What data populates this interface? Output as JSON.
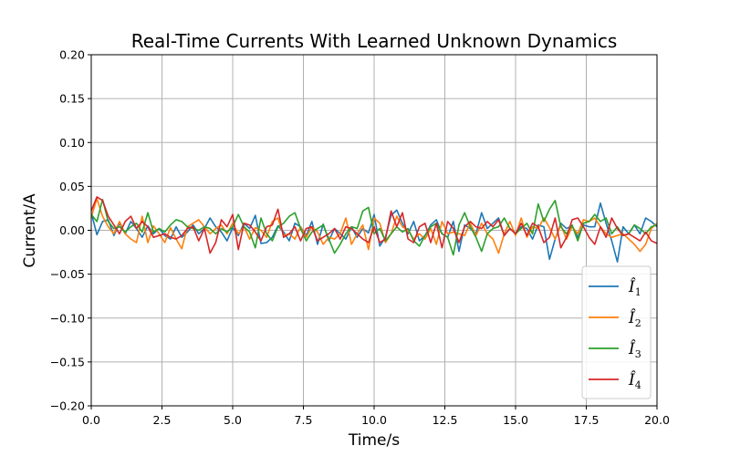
{
  "chart_data": {
    "type": "line",
    "title": "Real-Time Currents With Learned Unknown Dynamics",
    "xlabel": "Time/s",
    "ylabel": "Current/A",
    "xlim": [
      0,
      20
    ],
    "ylim": [
      -0.2,
      0.2
    ],
    "xticks": [
      "0.0",
      "2.5",
      "5.0",
      "7.5",
      "10.0",
      "12.5",
      "15.0",
      "17.5",
      "20.0"
    ],
    "yticks": [
      "0.20",
      "0.15",
      "0.10",
      "0.05",
      "0.00",
      "−0.05",
      "−0.10",
      "−0.15",
      "−0.20"
    ],
    "grid": true,
    "legend_position": "lower-right",
    "series": [
      {
        "name": "Î",
        "subscript": "1",
        "color": "#1f77b4",
        "x": [
          0.0,
          0.2,
          0.4,
          0.6,
          0.8,
          1.0,
          1.2,
          1.4,
          1.6,
          1.8,
          2.0,
          2.2,
          2.4,
          2.6,
          2.8,
          3.0,
          3.2,
          3.4,
          3.6,
          3.8,
          4.0,
          4.2,
          4.4,
          4.6,
          4.8,
          5.0,
          5.2,
          5.4,
          5.6,
          5.8,
          6.0,
          6.2,
          6.4,
          6.6,
          6.8,
          7.0,
          7.2,
          7.4,
          7.6,
          7.8,
          8.0,
          8.2,
          8.4,
          8.6,
          8.8,
          9.0,
          9.2,
          9.4,
          9.6,
          9.8,
          10.0,
          10.2,
          10.4,
          10.6,
          10.8,
          11.0,
          11.2,
          11.4,
          11.6,
          11.8,
          12.0,
          12.2,
          12.4,
          12.6,
          12.8,
          13.0,
          13.2,
          13.4,
          13.6,
          13.8,
          14.0,
          14.2,
          14.4,
          14.6,
          14.8,
          15.0,
          15.2,
          15.4,
          15.6,
          15.8,
          16.0,
          16.2,
          16.4,
          16.6,
          16.8,
          17.0,
          17.2,
          17.4,
          17.6,
          17.8,
          18.0,
          18.2,
          18.4,
          18.6,
          18.8,
          19.0,
          19.2,
          19.4,
          19.6,
          19.8,
          20.0
        ],
        "y": [
          0.02,
          -0.005,
          0.01,
          0.012,
          -0.006,
          0.008,
          -0.004,
          0.01,
          0.002,
          -0.008,
          0.005,
          -0.004,
          0.002,
          -0.006,
          -0.01,
          0.004,
          -0.008,
          -0.002,
          0.006,
          -0.004,
          0.002,
          0.014,
          0.004,
          -0.002,
          -0.012,
          0.003,
          -0.006,
          0.008,
          0.002,
          0.017,
          -0.015,
          -0.014,
          -0.008,
          0.005,
          -0.002,
          -0.012,
          0.008,
          0.004,
          -0.006,
          0.01,
          -0.016,
          0.007,
          -0.012,
          0.002,
          -0.004,
          -0.01,
          0.004,
          -0.008,
          0.002,
          -0.003,
          0.018,
          -0.018,
          -0.008,
          0.017,
          0.023,
          0.008,
          -0.004,
          0.01,
          -0.012,
          -0.006,
          0.006,
          0.012,
          -0.004,
          -0.008,
          0.01,
          -0.024,
          0.006,
          0.002,
          -0.004,
          0.02,
          0.002,
          0.008,
          0.014,
          -0.006,
          0.002,
          -0.004,
          0.004,
          0.002,
          -0.01,
          0.006,
          0.004,
          -0.033,
          -0.01,
          0.008,
          0.002,
          0.005,
          -0.008,
          0.006,
          0.004,
          0.004,
          0.031,
          0.008,
          -0.012,
          -0.036,
          0.004,
          -0.004,
          0.006,
          -0.004,
          0.014,
          0.01,
          0.004
        ]
      },
      {
        "name": "Î",
        "subscript": "2",
        "color": "#ff7f0e",
        "x": [
          0.0,
          0.2,
          0.4,
          0.6,
          0.8,
          1.0,
          1.2,
          1.4,
          1.6,
          1.8,
          2.0,
          2.2,
          2.4,
          2.6,
          2.8,
          3.0,
          3.2,
          3.4,
          3.6,
          3.8,
          4.0,
          4.2,
          4.4,
          4.6,
          4.8,
          5.0,
          5.2,
          5.4,
          5.6,
          5.8,
          6.0,
          6.2,
          6.4,
          6.6,
          6.8,
          7.0,
          7.2,
          7.4,
          7.6,
          7.8,
          8.0,
          8.2,
          8.4,
          8.6,
          8.8,
          9.0,
          9.2,
          9.4,
          9.6,
          9.8,
          10.0,
          10.2,
          10.4,
          10.6,
          10.8,
          11.0,
          11.2,
          11.4,
          11.6,
          11.8,
          12.0,
          12.2,
          12.4,
          12.6,
          12.8,
          13.0,
          13.2,
          13.4,
          13.6,
          13.8,
          14.0,
          14.2,
          14.4,
          14.6,
          14.8,
          15.0,
          15.2,
          15.4,
          15.6,
          15.8,
          16.0,
          16.2,
          16.4,
          16.6,
          16.8,
          17.0,
          17.2,
          17.4,
          17.6,
          17.8,
          18.0,
          18.2,
          18.4,
          18.6,
          18.8,
          19.0,
          19.2,
          19.4,
          19.6,
          19.8,
          20.0
        ],
        "y": [
          0.015,
          0.036,
          0.016,
          0.004,
          -0.004,
          0.01,
          -0.004,
          -0.01,
          -0.014,
          0.016,
          -0.014,
          0.005,
          -0.004,
          -0.014,
          0.003,
          -0.01,
          -0.021,
          0.004,
          0.008,
          0.012,
          0.004,
          -0.004,
          0.002,
          0.006,
          -0.004,
          0.008,
          -0.004,
          0.004,
          -0.01,
          0.003,
          0.0,
          -0.008,
          0.01,
          0.014,
          -0.006,
          -0.004,
          -0.01,
          0.004,
          -0.008,
          0.004,
          -0.002,
          -0.016,
          -0.008,
          -0.01,
          -0.004,
          0.014,
          -0.016,
          -0.004,
          0.006,
          -0.022,
          0.014,
          0.008,
          -0.014,
          -0.004,
          0.016,
          0.004,
          0.0,
          -0.01,
          -0.004,
          -0.01,
          0.002,
          -0.016,
          0.01,
          -0.004,
          -0.002,
          -0.004,
          -0.006,
          0.008,
          -0.006,
          0.008,
          -0.004,
          -0.01,
          -0.026,
          -0.004,
          0.01,
          -0.006,
          0.014,
          -0.008,
          0.004,
          0.002,
          0.014,
          0.003,
          -0.01,
          0.006,
          -0.01,
          0.004,
          -0.004,
          0.012,
          0.01,
          0.014,
          0.004,
          -0.004,
          -0.008,
          -0.006,
          -0.004,
          -0.01,
          -0.016,
          -0.024,
          -0.016,
          0.002,
          0.008
        ]
      },
      {
        "name": "Î",
        "subscript": "3",
        "color": "#2ca02c",
        "x": [
          0.0,
          0.2,
          0.4,
          0.6,
          0.8,
          1.0,
          1.2,
          1.4,
          1.6,
          1.8,
          2.0,
          2.2,
          2.4,
          2.6,
          2.8,
          3.0,
          3.2,
          3.4,
          3.6,
          3.8,
          4.0,
          4.2,
          4.4,
          4.6,
          4.8,
          5.0,
          5.2,
          5.4,
          5.6,
          5.8,
          6.0,
          6.2,
          6.4,
          6.6,
          6.8,
          7.0,
          7.2,
          7.4,
          7.6,
          7.8,
          8.0,
          8.2,
          8.4,
          8.6,
          8.8,
          9.0,
          9.2,
          9.4,
          9.6,
          9.8,
          10.0,
          10.2,
          10.4,
          10.6,
          10.8,
          11.0,
          11.2,
          11.4,
          11.6,
          11.8,
          12.0,
          12.2,
          12.4,
          12.6,
          12.8,
          13.0,
          13.2,
          13.4,
          13.6,
          13.8,
          14.0,
          14.2,
          14.4,
          14.6,
          14.8,
          15.0,
          15.2,
          15.4,
          15.6,
          15.8,
          16.0,
          16.2,
          16.4,
          16.6,
          16.8,
          17.0,
          17.2,
          17.4,
          17.6,
          17.8,
          18.0,
          18.2,
          18.4,
          18.6,
          18.8,
          19.0,
          19.2,
          19.4,
          19.6,
          19.8,
          20.0
        ],
        "y": [
          0.018,
          0.01,
          0.035,
          0.01,
          0.002,
          0.004,
          -0.002,
          0.004,
          0.008,
          -0.002,
          0.02,
          -0.002,
          0.002,
          -0.002,
          0.006,
          0.012,
          0.01,
          0.004,
          0.002,
          0.0,
          0.004,
          0.002,
          -0.004,
          0.002,
          -0.002,
          0.004,
          0.018,
          0.004,
          -0.002,
          -0.02,
          0.014,
          -0.004,
          -0.012,
          0.004,
          0.008,
          0.016,
          0.02,
          0.002,
          -0.012,
          -0.002,
          0.002,
          0.006,
          -0.01,
          -0.026,
          -0.016,
          -0.004,
          0.004,
          0.002,
          0.022,
          0.026,
          -0.004,
          0.002,
          -0.012,
          -0.004,
          0.004,
          -0.002,
          0.002,
          -0.012,
          -0.018,
          -0.006,
          0.004,
          0.008,
          -0.004,
          -0.008,
          -0.028,
          0.006,
          0.02,
          0.004,
          -0.008,
          -0.024,
          -0.004,
          0.002,
          0.004,
          0.014,
          0.002,
          -0.004,
          0.002,
          0.008,
          -0.004,
          0.03,
          0.01,
          0.024,
          0.034,
          0.004,
          -0.004,
          0.006,
          -0.012,
          0.008,
          0.01,
          0.018,
          0.01,
          0.014,
          -0.004,
          0.004,
          -0.006,
          -0.004,
          0.006,
          0.002,
          -0.004,
          0.004,
          0.006
        ]
      },
      {
        "name": "Î",
        "subscript": "4",
        "color": "#d62728",
        "x": [
          0.0,
          0.2,
          0.4,
          0.6,
          0.8,
          1.0,
          1.2,
          1.4,
          1.6,
          1.8,
          2.0,
          2.2,
          2.4,
          2.6,
          2.8,
          3.0,
          3.2,
          3.4,
          3.6,
          3.8,
          4.0,
          4.2,
          4.4,
          4.6,
          4.8,
          5.0,
          5.2,
          5.4,
          5.6,
          5.8,
          6.0,
          6.2,
          6.4,
          6.6,
          6.8,
          7.0,
          7.2,
          7.4,
          7.6,
          7.8,
          8.0,
          8.2,
          8.4,
          8.6,
          8.8,
          9.0,
          9.2,
          9.4,
          9.6,
          9.8,
          10.0,
          10.2,
          10.4,
          10.6,
          10.8,
          11.0,
          11.2,
          11.4,
          11.6,
          11.8,
          12.0,
          12.2,
          12.4,
          12.6,
          12.8,
          13.0,
          13.2,
          13.4,
          13.6,
          13.8,
          14.0,
          14.2,
          14.4,
          14.6,
          14.8,
          15.0,
          15.2,
          15.4,
          15.6,
          15.8,
          16.0,
          16.2,
          16.4,
          16.6,
          16.8,
          17.0,
          17.2,
          17.4,
          17.6,
          17.8,
          18.0,
          18.2,
          18.4,
          18.6,
          18.8,
          19.0,
          19.2,
          19.4,
          19.6,
          19.8,
          20.0
        ],
        "y": [
          0.022,
          0.038,
          0.034,
          0.016,
          0.006,
          -0.004,
          0.01,
          0.016,
          0.002,
          0.01,
          0.004,
          -0.008,
          -0.006,
          -0.004,
          -0.008,
          -0.01,
          -0.006,
          0.002,
          0.004,
          -0.012,
          0.002,
          -0.026,
          -0.014,
          0.012,
          0.004,
          0.018,
          -0.022,
          0.008,
          0.006,
          -0.002,
          -0.012,
          0.004,
          0.006,
          0.024,
          -0.008,
          -0.004,
          0.004,
          -0.012,
          0.002,
          0.004,
          -0.012,
          -0.008,
          -0.004,
          0.002,
          -0.01,
          0.004,
          0.002,
          -0.004,
          -0.01,
          -0.014,
          0.004,
          -0.014,
          -0.01,
          0.022,
          0.004,
          0.02,
          -0.01,
          -0.014,
          0.004,
          0.008,
          -0.014,
          0.008,
          -0.02,
          0.01,
          0.002,
          -0.014,
          0.004,
          0.01,
          0.004,
          0.002,
          0.01,
          0.004,
          0.012,
          -0.006,
          0.002,
          -0.004,
          0.008,
          -0.006,
          0.008,
          0.004,
          -0.014,
          -0.008,
          0.014,
          -0.02,
          -0.008,
          0.012,
          0.014,
          0.004,
          -0.008,
          -0.016,
          0.004,
          -0.008,
          0.014,
          0.002,
          -0.006,
          -0.004,
          -0.008,
          -0.012,
          -0.002,
          -0.012,
          -0.015
        ]
      }
    ]
  }
}
